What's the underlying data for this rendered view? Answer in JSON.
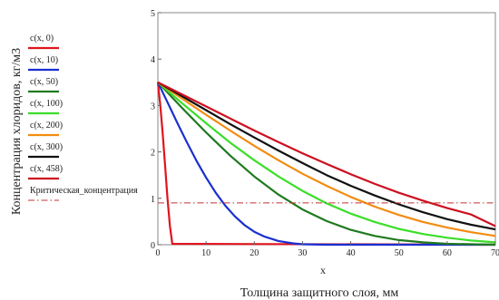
{
  "chart_data": {
    "type": "line",
    "xlabel": "Толщина защитного слоя, мм",
    "x_axis_symbol": "x",
    "ylabel": "Концентрация хлоридов, кг/м3",
    "xlim": [
      0,
      70
    ],
    "ylim": [
      0,
      5
    ],
    "x_ticks": [
      0,
      10,
      20,
      30,
      40,
      50,
      60,
      70
    ],
    "y_ticks": [
      0,
      1,
      2,
      3,
      4,
      5
    ],
    "legend_position": "left",
    "series": [
      {
        "name": "c(x, 0)",
        "color": "#e0141e",
        "x": [
          0,
          0.5,
          1,
          1.5,
          2,
          2.5,
          3,
          70
        ],
        "y": [
          3.5,
          3.0,
          2.4,
          1.7,
          1.0,
          0.4,
          0.02,
          0
        ]
      },
      {
        "name": "c(x, 10)",
        "color": "#1a2fd0",
        "x": [
          0,
          2,
          4,
          6,
          8,
          10,
          12,
          14,
          16,
          18,
          20,
          22,
          25,
          28,
          30,
          35,
          70
        ],
        "y": [
          3.5,
          3.07,
          2.63,
          2.21,
          1.81,
          1.45,
          1.12,
          0.84,
          0.61,
          0.42,
          0.28,
          0.18,
          0.08,
          0.03,
          0.01,
          0,
          0
        ]
      },
      {
        "name": "c(x, 50)",
        "color": "#1f7a1f",
        "x": [
          0,
          5,
          10,
          15,
          20,
          25,
          30,
          35,
          40,
          45,
          50,
          55,
          60,
          70
        ],
        "y": [
          3.5,
          2.95,
          2.42,
          1.92,
          1.47,
          1.08,
          0.76,
          0.51,
          0.32,
          0.19,
          0.1,
          0.05,
          0.02,
          0
        ]
      },
      {
        "name": "c(x, 100)",
        "color": "#3bde2a",
        "x": [
          0,
          5,
          10,
          15,
          20,
          25,
          30,
          35,
          40,
          45,
          50,
          55,
          60,
          65,
          70
        ],
        "y": [
          3.5,
          3.05,
          2.62,
          2.2,
          1.82,
          1.47,
          1.16,
          0.89,
          0.67,
          0.49,
          0.34,
          0.23,
          0.15,
          0.09,
          0.05
        ]
      },
      {
        "name": "c(x, 200)",
        "color": "#f28c10",
        "x": [
          0,
          5,
          10,
          15,
          20,
          25,
          30,
          35,
          40,
          45,
          50,
          55,
          60,
          65,
          70
        ],
        "y": [
          3.5,
          3.15,
          2.8,
          2.46,
          2.13,
          1.82,
          1.53,
          1.27,
          1.03,
          0.82,
          0.64,
          0.49,
          0.37,
          0.27,
          0.19
        ]
      },
      {
        "name": "c(x, 300)",
        "color": "#111111",
        "x": [
          0,
          5,
          10,
          15,
          20,
          25,
          30,
          35,
          40,
          45,
          50,
          55,
          60,
          65,
          70
        ],
        "y": [
          3.5,
          3.2,
          2.9,
          2.6,
          2.31,
          2.03,
          1.76,
          1.5,
          1.27,
          1.06,
          0.87,
          0.7,
          0.55,
          0.43,
          0.33
        ]
      },
      {
        "name": "c(x, 458)",
        "color": "#cc1020",
        "x": [
          0,
          5,
          10,
          15,
          20,
          25,
          30,
          35,
          40,
          45,
          50,
          55,
          60,
          65,
          70
        ],
        "y": [
          3.5,
          3.24,
          2.98,
          2.72,
          2.46,
          2.21,
          1.97,
          1.74,
          1.52,
          1.31,
          1.12,
          0.95,
          0.79,
          0.65,
          0.4
        ]
      },
      {
        "name": "Критическая_концентрация",
        "color": "#c03030",
        "dashed": true,
        "x": [
          0,
          70
        ],
        "y": [
          0.9,
          0.9
        ]
      }
    ]
  }
}
